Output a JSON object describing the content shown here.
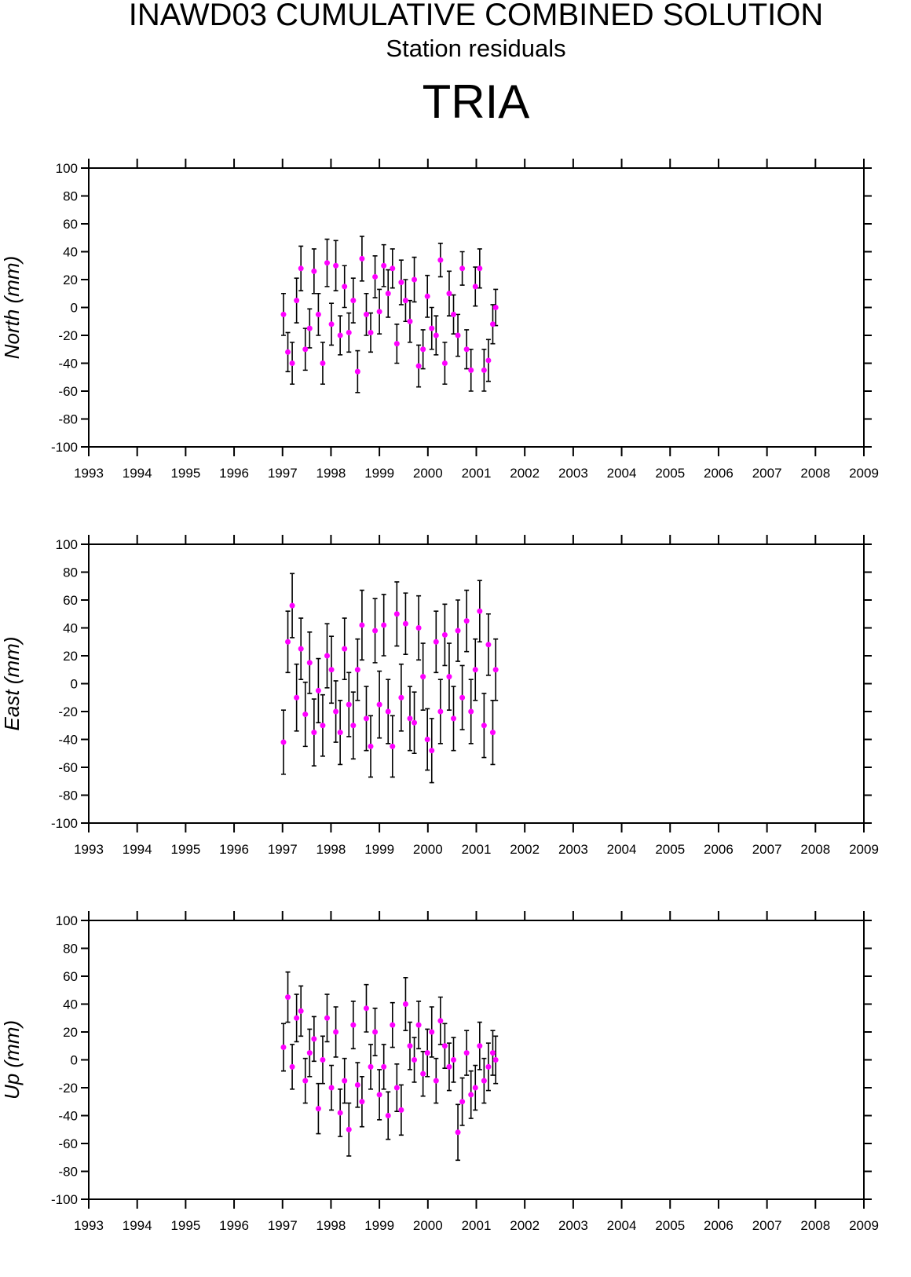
{
  "header": {
    "title": "INAWD03 CUMULATIVE COMBINED SOLUTION",
    "subtitle": "Station residuals",
    "station": "TRIA"
  },
  "chart_data": [
    {
      "type": "scatter",
      "ylabel": "North (mm)",
      "color": "#ff00ff",
      "errorbar_color": "#000000",
      "x": [
        1997.02,
        1997.11,
        1997.2,
        1997.29,
        1997.38,
        1997.47,
        1997.56,
        1997.65,
        1997.74,
        1997.83,
        1997.92,
        1998.01,
        1998.1,
        1998.19,
        1998.28,
        1998.37,
        1998.46,
        1998.55,
        1998.64,
        1998.73,
        1998.82,
        1998.91,
        1999.0,
        1999.09,
        1999.18,
        1999.27,
        1999.36,
        1999.45,
        1999.54,
        1999.63,
        1999.72,
        1999.81,
        1999.9,
        1999.99,
        2000.08,
        2000.17,
        2000.26,
        2000.35,
        2000.44,
        2000.53,
        2000.62,
        2000.71,
        2000.8,
        2000.89,
        2000.98,
        2001.07,
        2001.16,
        2001.25,
        2001.34,
        2001.4
      ],
      "values": [
        -5,
        -32,
        -40,
        5,
        28,
        -30,
        -15,
        26,
        -5,
        -40,
        32,
        -12,
        30,
        -20,
        15,
        -18,
        5,
        -46,
        35,
        -5,
        -18,
        22,
        -3,
        30,
        10,
        28,
        -26,
        18,
        5,
        -10,
        20,
        -42,
        -30,
        8,
        -15,
        -20,
        34,
        -40,
        10,
        -5,
        -20,
        28,
        -30,
        -45,
        15,
        28,
        -45,
        -38,
        -12,
        0
      ],
      "errors": [
        15,
        14,
        15,
        16,
        16,
        15,
        14,
        16,
        15,
        15,
        17,
        15,
        18,
        14,
        15,
        14,
        16,
        15,
        16,
        15,
        14,
        15,
        16,
        15,
        17,
        14,
        14,
        16,
        15,
        15,
        16,
        15,
        14,
        15,
        15,
        14,
        12,
        15,
        16,
        14,
        15,
        12,
        14,
        15,
        14,
        14,
        15,
        15,
        14,
        13
      ],
      "xlim": [
        1993,
        2009
      ],
      "ylim": [
        -100,
        100
      ],
      "xticks": [
        1993,
        1994,
        1995,
        1996,
        1997,
        1998,
        1999,
        2000,
        2001,
        2002,
        2003,
        2004,
        2005,
        2006,
        2007,
        2008,
        2009
      ],
      "yticks": [
        -100,
        -80,
        -60,
        -40,
        -20,
        0,
        20,
        40,
        60,
        80,
        100
      ]
    },
    {
      "type": "scatter",
      "ylabel": "East (mm)",
      "color": "#ff00ff",
      "errorbar_color": "#000000",
      "x": [
        1997.02,
        1997.11,
        1997.2,
        1997.29,
        1997.38,
        1997.47,
        1997.56,
        1997.65,
        1997.74,
        1997.83,
        1997.92,
        1998.01,
        1998.1,
        1998.19,
        1998.28,
        1998.37,
        1998.46,
        1998.55,
        1998.64,
        1998.73,
        1998.82,
        1998.91,
        1999.0,
        1999.09,
        1999.18,
        1999.27,
        1999.36,
        1999.45,
        1999.54,
        1999.63,
        1999.72,
        1999.81,
        1999.9,
        1999.99,
        2000.08,
        2000.17,
        2000.26,
        2000.35,
        2000.44,
        2000.53,
        2000.62,
        2000.71,
        2000.8,
        2000.89,
        2000.98,
        2001.07,
        2001.16,
        2001.25,
        2001.34,
        2001.4
      ],
      "values": [
        -42,
        30,
        56,
        -10,
        25,
        -22,
        15,
        -35,
        -5,
        -30,
        20,
        10,
        -20,
        -35,
        25,
        -15,
        -30,
        10,
        42,
        -25,
        -45,
        38,
        -15,
        42,
        -20,
        -45,
        50,
        -10,
        43,
        -25,
        -28,
        40,
        5,
        -40,
        -48,
        30,
        -20,
        35,
        5,
        -25,
        38,
        -10,
        45,
        -20,
        10,
        52,
        -30,
        28,
        -35,
        10
      ],
      "errors": [
        23,
        22,
        23,
        24,
        22,
        23,
        22,
        24,
        23,
        22,
        23,
        24,
        22,
        23,
        22,
        23,
        24,
        22,
        25,
        23,
        22,
        23,
        24,
        22,
        23,
        22,
        23,
        24,
        22,
        23,
        22,
        23,
        24,
        22,
        23,
        22,
        23,
        22,
        24,
        23,
        22,
        23,
        22,
        23,
        22,
        22,
        23,
        22,
        23,
        22
      ],
      "xlim": [
        1993,
        2009
      ],
      "ylim": [
        -100,
        100
      ],
      "xticks": [
        1993,
        1994,
        1995,
        1996,
        1997,
        1998,
        1999,
        2000,
        2001,
        2002,
        2003,
        2004,
        2005,
        2006,
        2007,
        2008,
        2009
      ],
      "yticks": [
        -100,
        -80,
        -60,
        -40,
        -20,
        0,
        20,
        40,
        60,
        80,
        100
      ]
    },
    {
      "type": "scatter",
      "ylabel": "Up (mm)",
      "color": "#ff00ff",
      "errorbar_color": "#000000",
      "x": [
        1997.02,
        1997.11,
        1997.2,
        1997.29,
        1997.38,
        1997.47,
        1997.56,
        1997.65,
        1997.74,
        1997.83,
        1997.92,
        1998.01,
        1998.1,
        1998.19,
        1998.28,
        1998.37,
        1998.46,
        1998.55,
        1998.64,
        1998.73,
        1998.82,
        1998.91,
        1999.0,
        1999.09,
        1999.18,
        1999.27,
        1999.36,
        1999.45,
        1999.54,
        1999.63,
        1999.72,
        1999.81,
        1999.9,
        1999.99,
        2000.08,
        2000.17,
        2000.26,
        2000.35,
        2000.44,
        2000.53,
        2000.62,
        2000.71,
        2000.8,
        2000.89,
        2000.98,
        2001.07,
        2001.16,
        2001.25,
        2001.34,
        2001.4
      ],
      "values": [
        9,
        45,
        -5,
        30,
        35,
        -15,
        5,
        15,
        -35,
        0,
        30,
        -20,
        20,
        -38,
        -15,
        -50,
        25,
        -18,
        -30,
        37,
        -5,
        20,
        -25,
        -5,
        -40,
        25,
        -20,
        -36,
        40,
        10,
        0,
        25,
        -10,
        5,
        20,
        -15,
        28,
        10,
        -5,
        0,
        -52,
        -30,
        5,
        -25,
        -20,
        10,
        -15,
        -5,
        5,
        0
      ],
      "errors": [
        17,
        18,
        16,
        17,
        18,
        16,
        17,
        16,
        18,
        17,
        17,
        16,
        18,
        17,
        16,
        19,
        17,
        16,
        18,
        17,
        16,
        17,
        18,
        16,
        17,
        16,
        17,
        18,
        19,
        17,
        16,
        17,
        16,
        17,
        18,
        16,
        17,
        16,
        17,
        16,
        20,
        17,
        16,
        17,
        16,
        17,
        16,
        17,
        16,
        17
      ],
      "xlim": [
        1993,
        2009
      ],
      "ylim": [
        -100,
        100
      ],
      "xticks": [
        1993,
        1994,
        1995,
        1996,
        1997,
        1998,
        1999,
        2000,
        2001,
        2002,
        2003,
        2004,
        2005,
        2006,
        2007,
        2008,
        2009
      ],
      "yticks": [
        -100,
        -80,
        -60,
        -40,
        -20,
        0,
        20,
        40,
        60,
        80,
        100
      ]
    }
  ]
}
